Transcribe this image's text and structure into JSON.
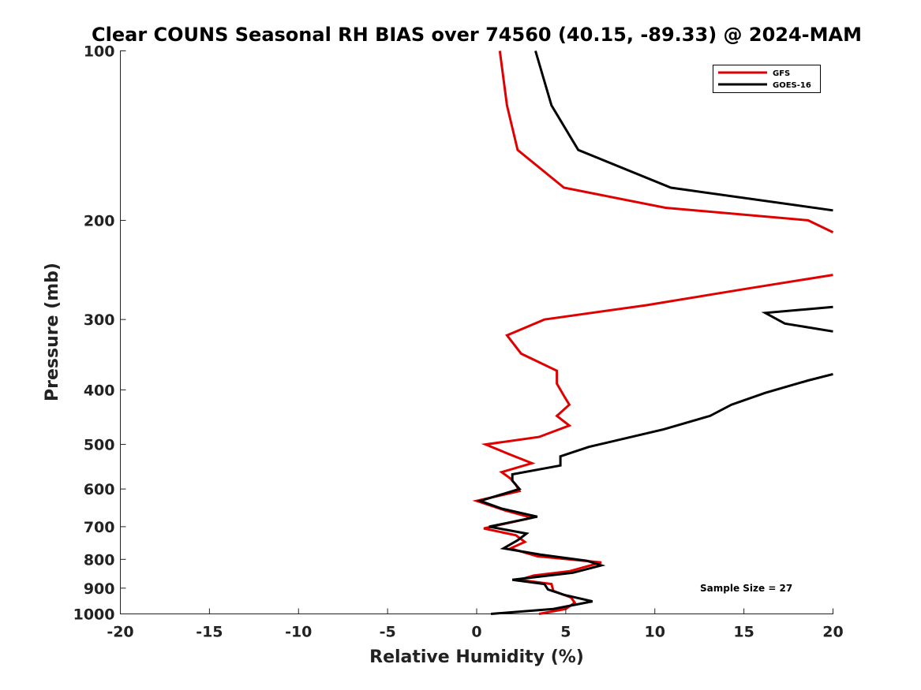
{
  "chart_data": {
    "type": "line",
    "title": "Clear COUNS Seasonal RH BIAS over 74560 (40.15, -89.33) @ 2024-MAM",
    "xlabel": "Relative Humidity (%)",
    "ylabel": "Pressure (mb)",
    "xlim": [
      -20,
      20
    ],
    "ylim": [
      100,
      1000
    ],
    "y_scale": "log",
    "y_reversed": true,
    "xticks": [
      -20,
      -15,
      -10,
      -5,
      0,
      5,
      10,
      15,
      20
    ],
    "yticks": [
      100,
      200,
      300,
      400,
      500,
      600,
      700,
      800,
      900,
      1000
    ],
    "grid": false,
    "legend_position": "top-right",
    "annotation": "Sample Size = 27",
    "series": [
      {
        "name": "GFS",
        "color": "#e00000",
        "segments": [
          [
            [
              1.3,
              100
            ],
            [
              1.7,
              125
            ],
            [
              2.3,
              150
            ],
            [
              4.9,
              175
            ],
            [
              10.6,
              190
            ],
            [
              18.6,
              200
            ],
            [
              20.0,
              210
            ]
          ],
          [
            [
              20.0,
              250
            ],
            [
              15.0,
              265
            ],
            [
              9.5,
              283
            ],
            [
              3.8,
              300
            ],
            [
              1.7,
              320
            ],
            [
              2.5,
              345
            ],
            [
              4.5,
              370
            ],
            [
              4.5,
              390
            ],
            [
              4.9,
              410
            ],
            [
              5.2,
              425
            ],
            [
              4.5,
              445
            ],
            [
              5.2,
              463
            ],
            [
              3.5,
              485
            ],
            [
              0.5,
              500
            ],
            [
              1.8,
              520
            ],
            [
              3.1,
              540
            ],
            [
              1.4,
              560
            ],
            [
              1.9,
              575
            ],
            [
              2.2,
              590
            ],
            [
              2.4,
              605
            ],
            [
              0.0,
              630
            ],
            [
              1.6,
              655
            ],
            [
              3.1,
              675
            ],
            [
              0.4,
              705
            ],
            [
              2.2,
              725
            ],
            [
              2.7,
              745
            ],
            [
              1.9,
              765
            ],
            [
              3.4,
              790
            ],
            [
              7.0,
              810
            ],
            [
              5.2,
              840
            ],
            [
              3.2,
              855
            ],
            [
              2.4,
              870
            ],
            [
              4.2,
              885
            ],
            [
              4.3,
              910
            ],
            [
              5.3,
              935
            ],
            [
              5.5,
              955
            ],
            [
              5.0,
              980
            ],
            [
              3.5,
              1000
            ]
          ]
        ]
      },
      {
        "name": "GOES-16",
        "color": "#000000",
        "segments": [
          [
            [
              3.3,
              100
            ],
            [
              4.2,
              125
            ],
            [
              5.7,
              150
            ],
            [
              10.9,
              175
            ],
            [
              20.0,
              192
            ]
          ],
          [
            [
              20.0,
              285
            ],
            [
              16.2,
              292
            ],
            [
              17.3,
              305
            ],
            [
              20.0,
              315
            ]
          ],
          [
            [
              20.0,
              375
            ],
            [
              18.6,
              385
            ],
            [
              16.2,
              405
            ],
            [
              14.3,
              425
            ],
            [
              13.1,
              445
            ],
            [
              10.5,
              470
            ],
            [
              6.3,
              505
            ],
            [
              4.7,
              525
            ],
            [
              4.7,
              545
            ],
            [
              2.0,
              565
            ],
            [
              2.0,
              580
            ],
            [
              2.4,
              600
            ],
            [
              0.2,
              630
            ],
            [
              1.4,
              650
            ],
            [
              3.4,
              672
            ],
            [
              0.7,
              700
            ],
            [
              2.8,
              720
            ],
            [
              2.3,
              740
            ],
            [
              1.5,
              765
            ],
            [
              3.6,
              785
            ],
            [
              6.2,
              805
            ],
            [
              7.0,
              820
            ],
            [
              5.4,
              845
            ],
            [
              2.0,
              870
            ],
            [
              3.8,
              885
            ],
            [
              4.0,
              905
            ],
            [
              4.9,
              925
            ],
            [
              6.5,
              950
            ],
            [
              4.3,
              980
            ],
            [
              0.8,
              1000
            ]
          ]
        ]
      }
    ]
  }
}
